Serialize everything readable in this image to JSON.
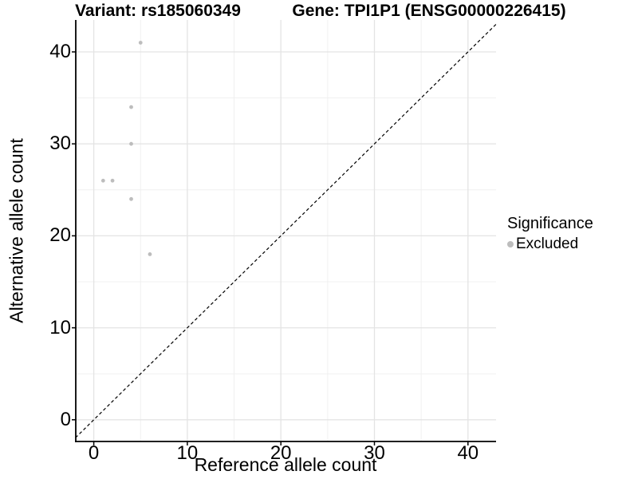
{
  "chart_data": {
    "type": "scatter",
    "title_left": "Variant: rs185060349",
    "title_right": "Gene: TPI1P1 (ENSG00000226415)",
    "xlabel": "Reference allele count",
    "ylabel": "Alternative allele count",
    "x_ticks": [
      0,
      10,
      20,
      30,
      40
    ],
    "y_ticks": [
      0,
      10,
      20,
      30,
      40
    ],
    "x_minor": [
      5,
      15,
      25,
      35
    ],
    "y_minor": [
      5,
      15,
      25,
      35
    ],
    "xlim": [
      -1.96,
      43.0
    ],
    "ylim": [
      -2.35,
      43.5
    ],
    "grid": true,
    "legend_position": "right",
    "identity_line": {
      "style": "dashed",
      "color": "#000000"
    },
    "colors": {
      "point": "#bdbdbd",
      "grid_major": "#e4e4e4",
      "grid_minor": "#f0f0f0",
      "axis": "#000000"
    },
    "series": [
      {
        "name": "Excluded",
        "color": "#bdbdbd",
        "points": [
          [
            1,
            26
          ],
          [
            2,
            26
          ],
          [
            4,
            24
          ],
          [
            4,
            30
          ],
          [
            4,
            34
          ],
          [
            5,
            41
          ],
          [
            6,
            18
          ]
        ]
      }
    ],
    "legend": {
      "title": "Significance",
      "entries": [
        {
          "label": "Excluded",
          "color": "#bdbdbd"
        }
      ]
    }
  }
}
